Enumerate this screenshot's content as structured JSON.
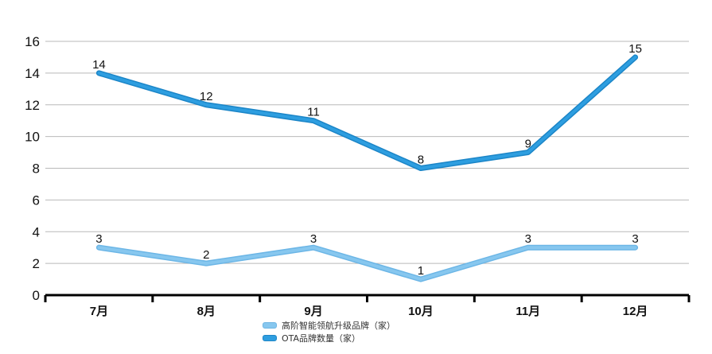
{
  "chart_data": {
    "type": "line",
    "categories": [
      "7月",
      "8月",
      "9月",
      "10月",
      "11月",
      "12月"
    ],
    "series": [
      {
        "name": "高阶智能领航升级品牌（家）",
        "values": [
          3,
          2,
          3,
          1,
          3,
          3
        ],
        "color": "#87c7ef"
      },
      {
        "name": "OTA品牌数量（家）",
        "values": [
          14,
          12,
          11,
          8,
          9,
          15
        ],
        "color": "#2e9ee0"
      }
    ],
    "ylim": [
      0,
      16
    ],
    "yticks": [
      0,
      2,
      4,
      6,
      8,
      10,
      12,
      14,
      16
    ],
    "grid": true,
    "legend": "bottom-center",
    "data_labels": true
  }
}
